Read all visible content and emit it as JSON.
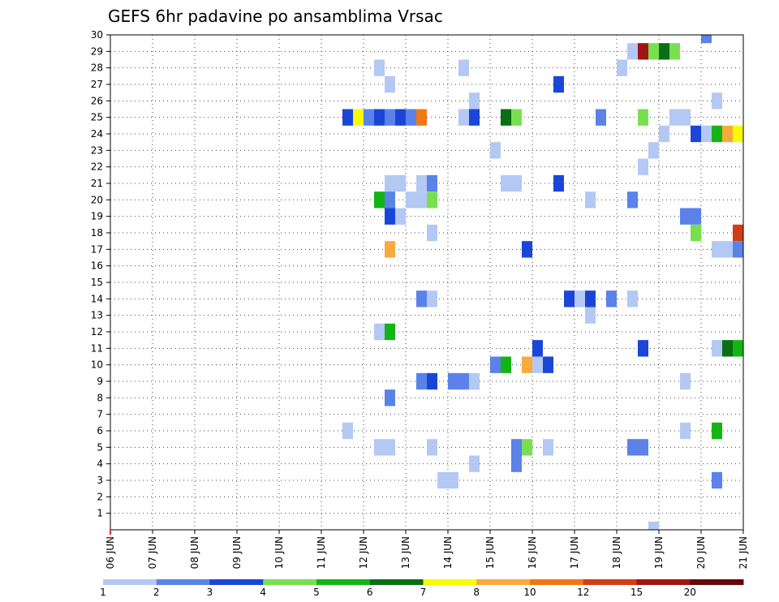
{
  "chart_data": {
    "type": "heatmap",
    "title": "GEFS 6hr padavine po ansamblima Vrsac",
    "xlabel": "",
    "ylabel": "",
    "x_tick_labels": [
      "06 JUN",
      "07 JUN",
      "08 JUN",
      "09 JUN",
      "10 JUN",
      "11 JUN",
      "12 JUN",
      "13 JUN",
      "14 JUN",
      "15 JUN",
      "16 JUN",
      "17 JUN",
      "18 JUN",
      "19 JUN",
      "20 JUN",
      "21 JUN"
    ],
    "y_tick_labels": [
      "1",
      "2",
      "3",
      "4",
      "5",
      "6",
      "7",
      "8",
      "9",
      "10",
      "11",
      "12",
      "13",
      "14",
      "15",
      "16",
      "17",
      "18",
      "19",
      "20",
      "21",
      "22",
      "23",
      "24",
      "25",
      "26",
      "27",
      "28",
      "29",
      "30"
    ],
    "xlim": [
      6,
      21
    ],
    "ylim": [
      0,
      30
    ],
    "grid": true,
    "colorbar": {
      "labels": [
        "1",
        "2",
        "3",
        "4",
        "5",
        "6",
        "7",
        "8",
        "10",
        "12",
        "15",
        "20"
      ],
      "colors": [
        "#b4c8f4",
        "#5a82e8",
        "#1a46d8",
        "#78e050",
        "#14b414",
        "#0a6e14",
        "#fafa00",
        "#faaa3c",
        "#f07814",
        "#d23c14",
        "#a01414",
        "#640a0a"
      ]
    },
    "cells": [
      {
        "x": 20.0,
        "m": 30,
        "c": 1
      },
      {
        "x": 18.25,
        "m": 29,
        "c": 0
      },
      {
        "x": 18.5,
        "m": 29,
        "c": 10
      },
      {
        "x": 18.75,
        "m": 29,
        "c": 3
      },
      {
        "x": 19.0,
        "m": 29,
        "c": 5
      },
      {
        "x": 19.25,
        "m": 29,
        "c": 3
      },
      {
        "x": 12.25,
        "m": 28,
        "c": 0
      },
      {
        "x": 14.25,
        "m": 28,
        "c": 0
      },
      {
        "x": 18.0,
        "m": 28,
        "c": 0
      },
      {
        "x": 12.5,
        "m": 27,
        "c": 0
      },
      {
        "x": 16.5,
        "m": 27,
        "c": 2
      },
      {
        "x": 14.5,
        "m": 26,
        "c": 0
      },
      {
        "x": 20.25,
        "m": 26,
        "c": 0
      },
      {
        "x": 11.5,
        "m": 25,
        "c": 2
      },
      {
        "x": 11.75,
        "m": 25,
        "c": 6
      },
      {
        "x": 12.0,
        "m": 25,
        "c": 1
      },
      {
        "x": 12.25,
        "m": 25,
        "c": 2
      },
      {
        "x": 12.5,
        "m": 25,
        "c": 1
      },
      {
        "x": 12.75,
        "m": 25,
        "c": 2
      },
      {
        "x": 13.0,
        "m": 25,
        "c": 1
      },
      {
        "x": 13.25,
        "m": 25,
        "c": 8
      },
      {
        "x": 14.25,
        "m": 25,
        "c": 0
      },
      {
        "x": 14.5,
        "m": 25,
        "c": 2
      },
      {
        "x": 15.25,
        "m": 25,
        "c": 5
      },
      {
        "x": 15.5,
        "m": 25,
        "c": 3
      },
      {
        "x": 17.5,
        "m": 25,
        "c": 1
      },
      {
        "x": 18.5,
        "m": 25,
        "c": 3
      },
      {
        "x": 19.25,
        "m": 25,
        "c": 0
      },
      {
        "x": 19.5,
        "m": 25,
        "c": 0
      },
      {
        "x": 19.0,
        "m": 24,
        "c": 0
      },
      {
        "x": 19.75,
        "m": 24,
        "c": 2
      },
      {
        "x": 20.0,
        "m": 24,
        "c": 0
      },
      {
        "x": 20.25,
        "m": 24,
        "c": 4
      },
      {
        "x": 20.5,
        "m": 24,
        "c": 7
      },
      {
        "x": 20.75,
        "m": 24,
        "c": 6
      },
      {
        "x": 15.0,
        "m": 23,
        "c": 0
      },
      {
        "x": 18.75,
        "m": 23,
        "c": 0
      },
      {
        "x": 18.5,
        "m": 22,
        "c": 0
      },
      {
        "x": 12.5,
        "m": 21,
        "c": 0
      },
      {
        "x": 12.75,
        "m": 21,
        "c": 0
      },
      {
        "x": 13.25,
        "m": 21,
        "c": 0
      },
      {
        "x": 13.5,
        "m": 21,
        "c": 1
      },
      {
        "x": 15.25,
        "m": 21,
        "c": 0
      },
      {
        "x": 15.5,
        "m": 21,
        "c": 0
      },
      {
        "x": 16.5,
        "m": 21,
        "c": 2
      },
      {
        "x": 12.25,
        "m": 20,
        "c": 4
      },
      {
        "x": 12.5,
        "m": 20,
        "c": 1
      },
      {
        "x": 13.0,
        "m": 20,
        "c": 0
      },
      {
        "x": 13.25,
        "m": 20,
        "c": 0
      },
      {
        "x": 13.5,
        "m": 20,
        "c": 3
      },
      {
        "x": 17.25,
        "m": 20,
        "c": 0
      },
      {
        "x": 18.25,
        "m": 20,
        "c": 1
      },
      {
        "x": 12.5,
        "m": 19,
        "c": 2
      },
      {
        "x": 12.75,
        "m": 19,
        "c": 0
      },
      {
        "x": 19.5,
        "m": 19,
        "c": 1
      },
      {
        "x": 19.75,
        "m": 19,
        "c": 1
      },
      {
        "x": 13.5,
        "m": 18,
        "c": 0
      },
      {
        "x": 19.75,
        "m": 18,
        "c": 3
      },
      {
        "x": 20.75,
        "m": 18,
        "c": 9
      },
      {
        "x": 12.5,
        "m": 17,
        "c": 7
      },
      {
        "x": 15.75,
        "m": 17,
        "c": 2
      },
      {
        "x": 20.25,
        "m": 17,
        "c": 0
      },
      {
        "x": 20.5,
        "m": 17,
        "c": 0
      },
      {
        "x": 20.75,
        "m": 17,
        "c": 1
      },
      {
        "x": 13.25,
        "m": 14,
        "c": 1
      },
      {
        "x": 13.5,
        "m": 14,
        "c": 0
      },
      {
        "x": 16.75,
        "m": 14,
        "c": 2
      },
      {
        "x": 17.0,
        "m": 14,
        "c": 0
      },
      {
        "x": 17.25,
        "m": 14,
        "c": 2
      },
      {
        "x": 17.75,
        "m": 14,
        "c": 1
      },
      {
        "x": 18.25,
        "m": 14,
        "c": 0
      },
      {
        "x": 17.25,
        "m": 13,
        "c": 0
      },
      {
        "x": 12.25,
        "m": 12,
        "c": 0
      },
      {
        "x": 12.5,
        "m": 12,
        "c": 4
      },
      {
        "x": 16.0,
        "m": 11,
        "c": 2
      },
      {
        "x": 18.5,
        "m": 11,
        "c": 2
      },
      {
        "x": 20.25,
        "m": 11,
        "c": 0
      },
      {
        "x": 20.5,
        "m": 11,
        "c": 5
      },
      {
        "x": 20.75,
        "m": 11,
        "c": 4
      },
      {
        "x": 15.0,
        "m": 10,
        "c": 1
      },
      {
        "x": 15.25,
        "m": 10,
        "c": 4
      },
      {
        "x": 15.75,
        "m": 10,
        "c": 7
      },
      {
        "x": 16.0,
        "m": 10,
        "c": 0
      },
      {
        "x": 16.25,
        "m": 10,
        "c": 2
      },
      {
        "x": 13.25,
        "m": 9,
        "c": 1
      },
      {
        "x": 13.5,
        "m": 9,
        "c": 2
      },
      {
        "x": 14.0,
        "m": 9,
        "c": 1
      },
      {
        "x": 14.25,
        "m": 9,
        "c": 1
      },
      {
        "x": 14.5,
        "m": 9,
        "c": 0
      },
      {
        "x": 19.5,
        "m": 9,
        "c": 0
      },
      {
        "x": 12.5,
        "m": 8,
        "c": 1
      },
      {
        "x": 11.5,
        "m": 6,
        "c": 0
      },
      {
        "x": 19.5,
        "m": 6,
        "c": 0
      },
      {
        "x": 20.25,
        "m": 6,
        "c": 4
      },
      {
        "x": 12.25,
        "m": 5,
        "c": 0
      },
      {
        "x": 12.5,
        "m": 5,
        "c": 0
      },
      {
        "x": 13.5,
        "m": 5,
        "c": 0
      },
      {
        "x": 15.5,
        "m": 5,
        "c": 1
      },
      {
        "x": 15.75,
        "m": 5,
        "c": 3
      },
      {
        "x": 16.25,
        "m": 5,
        "c": 0
      },
      {
        "x": 18.25,
        "m": 5,
        "c": 1
      },
      {
        "x": 18.5,
        "m": 5,
        "c": 1
      },
      {
        "x": 14.5,
        "m": 4,
        "c": 0
      },
      {
        "x": 15.5,
        "m": 4,
        "c": 1
      },
      {
        "x": 13.75,
        "m": 3,
        "c": 0
      },
      {
        "x": 14.0,
        "m": 3,
        "c": 0
      },
      {
        "x": 20.25,
        "m": 3,
        "c": 1
      },
      {
        "x": 18.75,
        "m": 0,
        "c": 0
      }
    ]
  }
}
